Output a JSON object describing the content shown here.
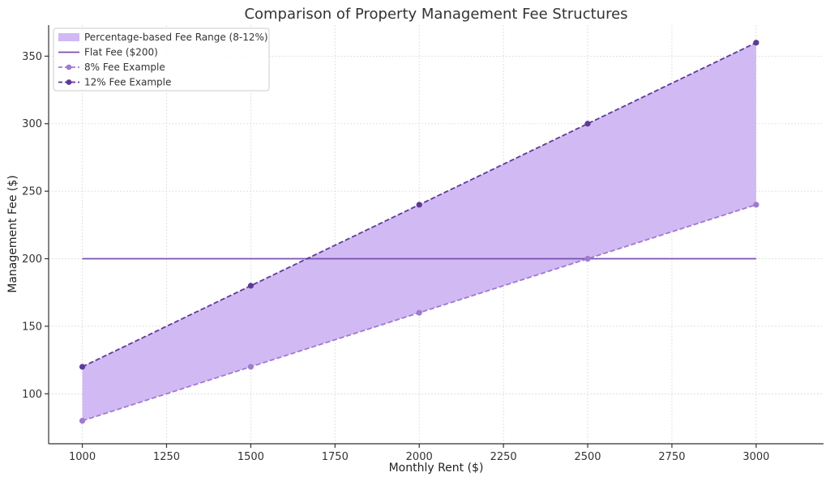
{
  "chart_data": {
    "type": "area",
    "title": "Comparison of Property Management Fee Structures",
    "xlabel": "Monthly Rent ($)",
    "ylabel": "Management Fee ($)",
    "xlim": [
      900,
      3200
    ],
    "ylim": [
      63,
      373
    ],
    "x_ticks": [
      1000,
      1250,
      1500,
      1750,
      2000,
      2250,
      2500,
      2750,
      3000
    ],
    "y_ticks": [
      100,
      150,
      200,
      250,
      300,
      350
    ],
    "grid": true,
    "legend_position": "top-left",
    "x": [
      1000,
      1500,
      2000,
      2500,
      3000
    ],
    "band": {
      "name": "Percentage-based Fee Range (8-12%)",
      "lower": [
        80,
        120,
        160,
        200,
        240
      ],
      "upper": [
        120,
        180,
        240,
        300,
        360
      ],
      "color": "#d1b9f3"
    },
    "series": [
      {
        "name": "Flat Fee ($200)",
        "style": "solid",
        "markers": false,
        "x": [
          1000,
          3000
        ],
        "values": [
          200,
          200
        ],
        "color": "#7b4fb0"
      },
      {
        "name": "8% Fee Example",
        "style": "dashed",
        "markers": true,
        "x": [
          1000,
          1500,
          2000,
          2500,
          3000
        ],
        "values": [
          80,
          120,
          160,
          200,
          240
        ],
        "color": "#a07ad0"
      },
      {
        "name": "12% Fee Example",
        "style": "dashed",
        "markers": true,
        "x": [
          1000,
          1500,
          2000,
          2500,
          3000
        ],
        "values": [
          120,
          180,
          240,
          300,
          360
        ],
        "color": "#5e3a96"
      }
    ]
  }
}
